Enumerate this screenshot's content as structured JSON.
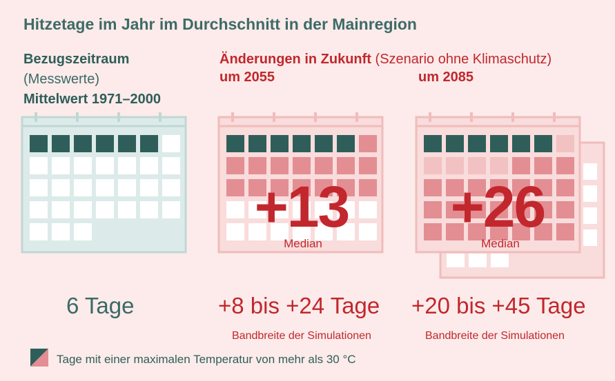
{
  "title": "Hitzetage im Jahr im Durchschnitt in der Mainregion",
  "reference": {
    "heading": "Bezugszeitraum",
    "subheading": "(Messwerte)",
    "period": "Mittelwert 1971–2000",
    "value_label": "6 Tage",
    "hot_days": 6
  },
  "future": {
    "heading": "Änderungen in Zukunft",
    "scenario": "(Szenario ohne Klimaschutz)",
    "periods": [
      {
        "year_label": "um 2055",
        "median_label": "+13",
        "median_caption": "Median",
        "range_label": "+8 bis +24 Tage",
        "range_caption": "Bandbreite der Simulationen",
        "base_days": 6,
        "median_add": 13
      },
      {
        "year_label": "um 2085",
        "median_label": "+26",
        "median_caption": "Median",
        "range_label": "+20 bis +45 Tage",
        "range_caption": "Bandbreite der Simulationen",
        "base_days": 6,
        "median_add": 26
      }
    ]
  },
  "legend": {
    "text": "Tage mit einer maximalen Temperatur von mehr als 30 °C"
  },
  "colors": {
    "background": "#fcebea",
    "base_day": "#2f5e5a",
    "added_day": "#e38e93",
    "added_day_light": "#f2c1c2",
    "ref_calendar_fill": "#dcebe9",
    "ref_calendar_stroke": "#bfd8d5",
    "fut_calendar_fill": "#f9dcdc",
    "fut_calendar_stroke": "#f0bcbc",
    "accent_red": "#c1272d"
  }
}
